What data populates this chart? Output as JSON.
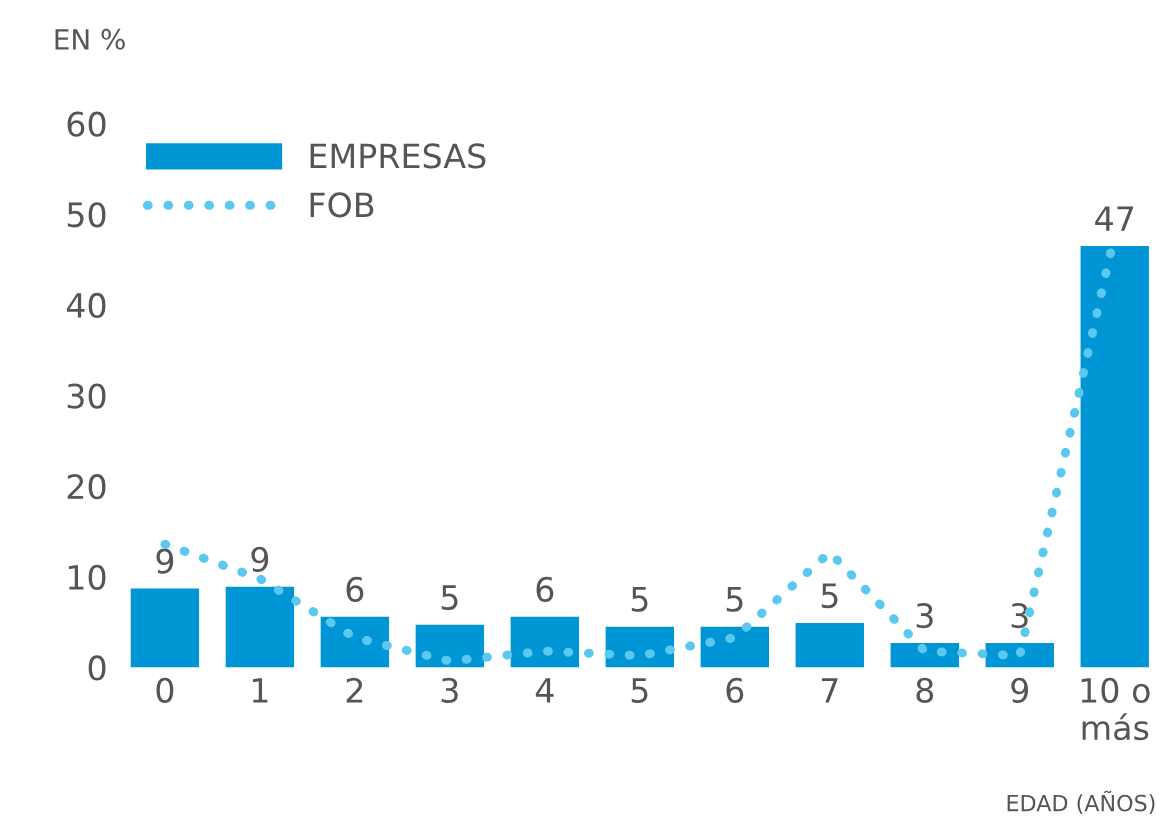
{
  "chart_data": {
    "type": "bar",
    "ylabel": "EN %",
    "xlabel": "EDAD (AÑOS)",
    "categories": [
      "0",
      "1",
      "2",
      "3",
      "4",
      "5",
      "6",
      "7",
      "8",
      "9",
      "10 o\nmás"
    ],
    "series": [
      {
        "name": "EMPRESAS",
        "color": "#0096d6",
        "values": [
          8.7,
          8.9,
          5.6,
          4.7,
          5.6,
          4.5,
          4.5,
          4.9,
          2.7,
          2.7,
          46.5
        ],
        "value_labels": [
          "9",
          "9",
          "6",
          "5",
          "6",
          "5",
          "5",
          "5",
          "3",
          "3",
          "47"
        ]
      },
      {
        "name": "FOB",
        "type": "line",
        "color": "#5bc8f0",
        "line_style": "dotted",
        "values": [
          13.6,
          9.8,
          3.3,
          0.7,
          1.8,
          1.3,
          3.3,
          12.7,
          1.8,
          1.3,
          47.8
        ]
      }
    ],
    "ylim": [
      0,
      60
    ],
    "yticks": [
      0,
      10,
      20,
      30,
      40,
      50,
      60
    ],
    "grid": false,
    "legend": "top left"
  }
}
